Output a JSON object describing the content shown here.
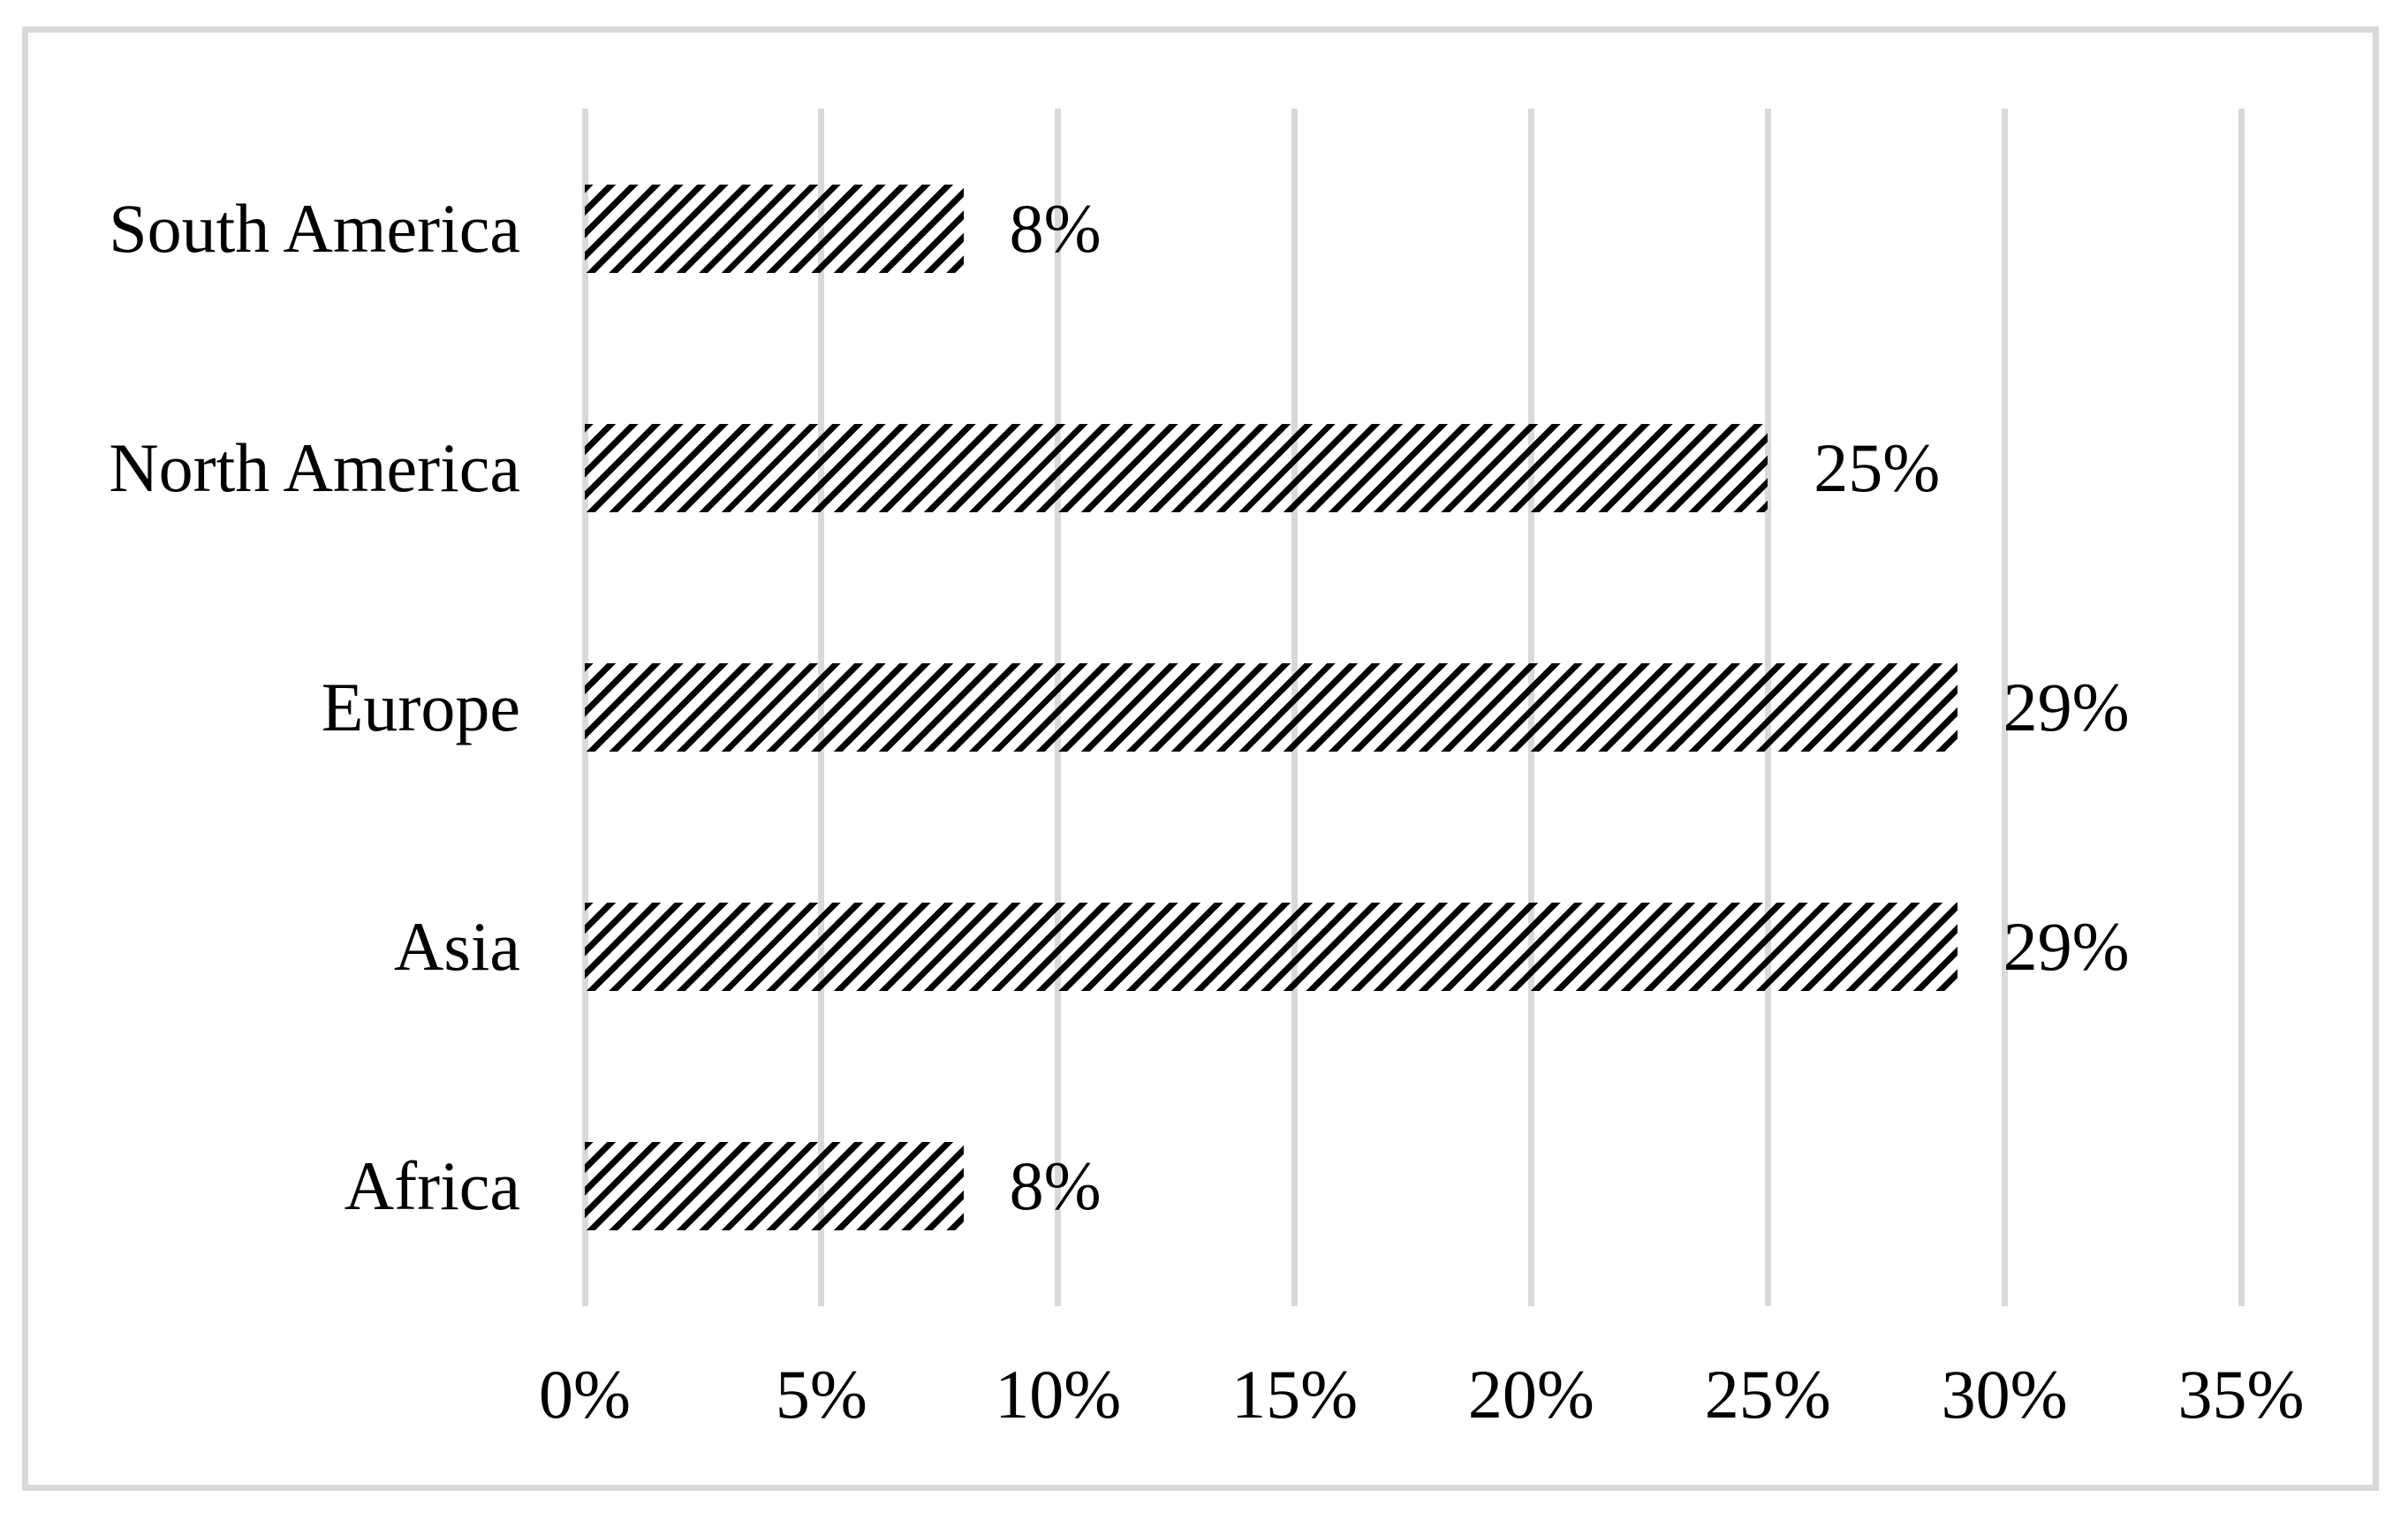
{
  "figure": {
    "background_color": "#ffffff",
    "frame_border_color": "#d9d9d9"
  },
  "chart_data": {
    "type": "bar",
    "orientation": "horizontal",
    "title": "",
    "xlabel": "",
    "ylabel": "",
    "categories": [
      "South America",
      "North America",
      "Europe",
      "Asia",
      "Africa"
    ],
    "values": [
      8,
      25,
      29,
      29,
      8
    ],
    "data_labels": [
      "8%",
      "25%",
      "29%",
      "29%",
      "8%"
    ],
    "x_ticks": [
      "0%",
      "5%",
      "10%",
      "15%",
      "20%",
      "25%",
      "30%",
      "35%"
    ],
    "x_tick_values": [
      0,
      5,
      10,
      15,
      20,
      25,
      30,
      35
    ],
    "xlim": [
      0,
      35
    ],
    "grid": "vertical",
    "gridline_color": "#d9d9d9",
    "bar_fill": "diagonal-hatch",
    "bar_hatch_color": "#000000",
    "legend": "none"
  }
}
